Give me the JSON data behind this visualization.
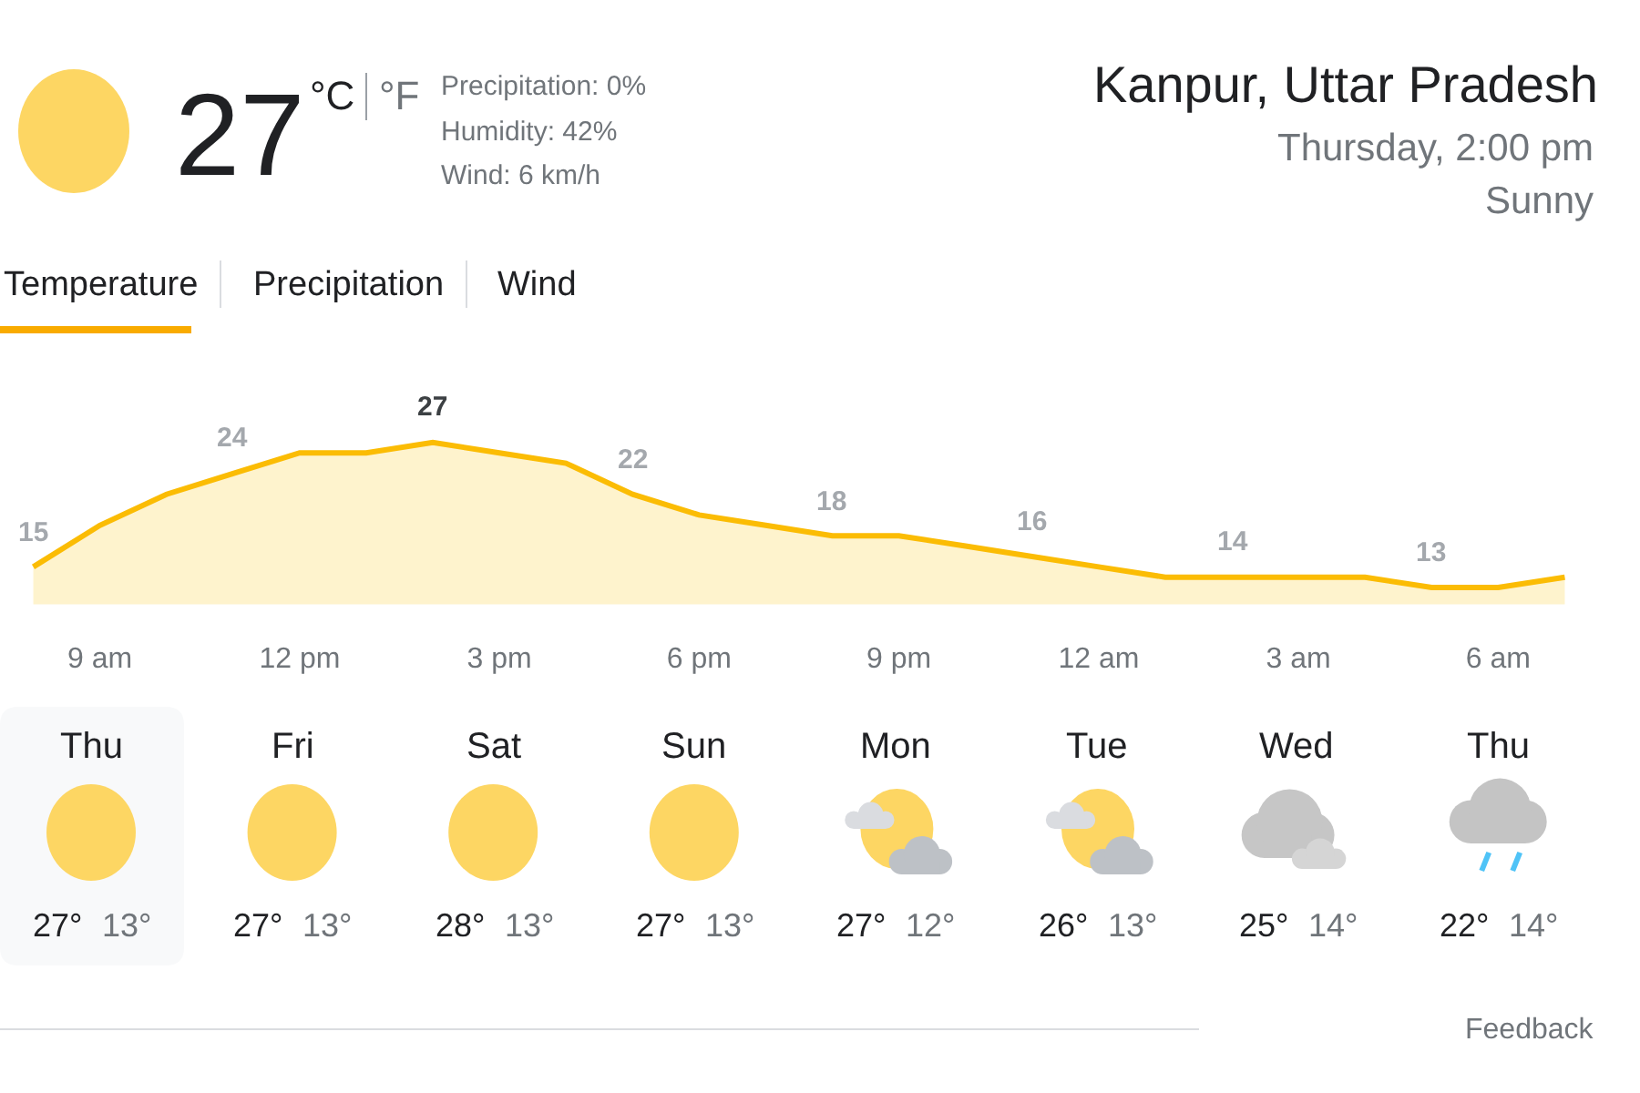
{
  "chart_data": [
    {
      "type": "other",
      "title": "Kanpur, Uttar Pradesh",
      "annotations": [
        "27",
        "°C",
        "°F",
        "Precipitation: 0%",
        "Humidity: 42%",
        "Wind: 6 km/h",
        "Thursday, 2:00 pm",
        "Sunny",
        "Temperature",
        "Precipitation",
        "Wind"
      ]
    },
    {
      "type": "area",
      "categories": [
        null,
        "9 am",
        null,
        null,
        "12 pm",
        null,
        null,
        "3 pm",
        null,
        null,
        "6 pm",
        null,
        null,
        "9 pm",
        null,
        null,
        "12 am",
        null,
        null,
        "3 am",
        null,
        null,
        "6 am",
        null
      ],
      "tick_labels": "x",
      "series": [
        {
          "color": "#fbbc04",
          "values": [
            15,
            19,
            22,
            24,
            26,
            26,
            27,
            26,
            25,
            22,
            20,
            19,
            18,
            18,
            17,
            16,
            15,
            14,
            14,
            14,
            14,
            13,
            13,
            14
          ],
          "value_labels": [
            "15",
            null,
            null,
            "24",
            null,
            null,
            "27",
            null,
            null,
            "22",
            null,
            null,
            "18",
            null,
            null,
            "16",
            null,
            null,
            "14",
            null,
            null,
            "13",
            null,
            null
          ]
        }
      ]
    },
    {
      "type": "other",
      "categories": [
        "Thu",
        "Fri",
        "Sat",
        "Sun",
        "Mon",
        "Tue",
        "Wed",
        "Thu"
      ],
      "annotations": [
        "27°",
        "13°",
        "27°",
        "13°",
        "28°",
        "13°",
        "27°",
        "13°",
        "27°",
        "12°",
        "26°",
        "13°",
        "25°",
        "14°",
        "22°",
        "14°",
        "Feedback"
      ]
    }
  ]
}
